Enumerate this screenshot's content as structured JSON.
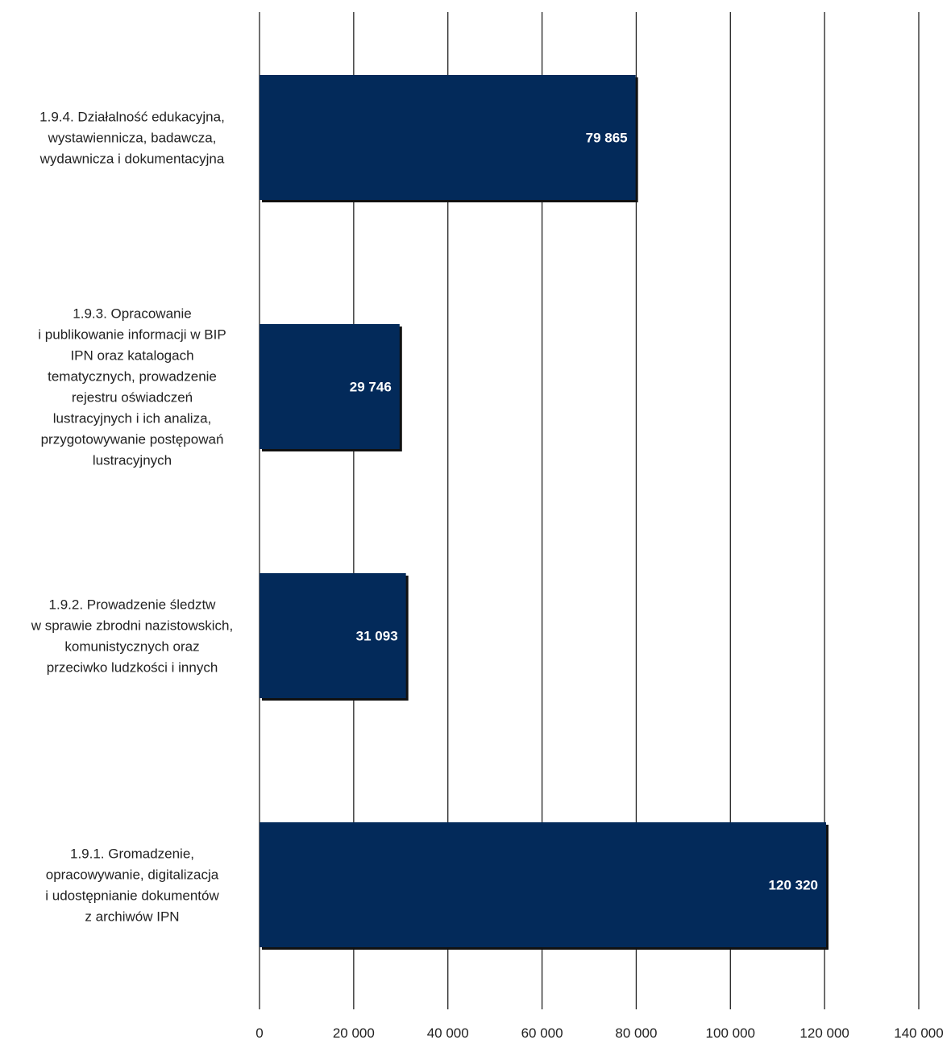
{
  "chart_data": {
    "type": "bar",
    "orientation": "horizontal",
    "title": "",
    "xlabel": "",
    "ylabel": "",
    "xlim": [
      0,
      140000
    ],
    "ticks": [
      0,
      20000,
      40000,
      60000,
      80000,
      100000,
      120000,
      140000
    ],
    "tick_labels": [
      "0",
      "20 000",
      "40 000",
      "60 000",
      "80 000",
      "100 000",
      "120 000",
      "140 000"
    ],
    "grid": "vertical",
    "legend": "none",
    "categories": [
      {
        "label_lines": [
          "1.9.4. Działalność edukacyjna,",
          "wystawiennicza, badawcza,",
          "wydawnicza i dokumentacyjna"
        ],
        "value": 79865,
        "value_label": "79 865"
      },
      {
        "label_lines": [
          "1.9.3. Opracowanie",
          "i publikowanie informacji w BIP",
          "IPN oraz katalogach",
          "tematycznych, prowadzenie",
          "rejestru oświadczeń",
          "lustracyjnych i ich analiza,",
          "przygotowywanie postępowań",
          "lustracyjnych"
        ],
        "value": 29746,
        "value_label": "29 746"
      },
      {
        "label_lines": [
          "1.9.2. Prowadzenie śledztw",
          "w sprawie zbrodni nazistowskich,",
          "komunistycznych oraz",
          "przeciwko ludzkości i innych"
        ],
        "value": 31093,
        "value_label": "31 093"
      },
      {
        "label_lines": [
          "1.9.1. Gromadzenie,",
          "opracowywanie, digitalizacja",
          "i udostępnianie dokumentów",
          "z archiwów IPN"
        ],
        "value": 120320,
        "value_label": "120 320"
      }
    ],
    "colors": {
      "bar": "#032A5A",
      "bar_shadow": "#111111",
      "grid": "#222222"
    }
  }
}
